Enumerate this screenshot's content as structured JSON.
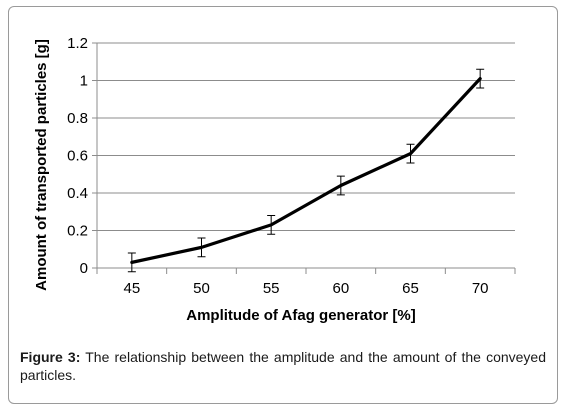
{
  "chart_data": {
    "type": "line",
    "x": [
      45,
      50,
      55,
      60,
      65,
      70
    ],
    "series": [
      {
        "values": [
          0.03,
          0.11,
          0.23,
          0.44,
          0.61,
          1.01
        ],
        "error": [
          0.05,
          0.05,
          0.05,
          0.05,
          0.05,
          0.05
        ],
        "color": "#000000"
      }
    ],
    "xlabel": "Amplitude of Afag generator [%]",
    "ylabel": "Amount of transported particles [g]",
    "xticks": [
      "45",
      "50",
      "55",
      "60",
      "65",
      "70"
    ],
    "yticks": [
      "0",
      "0.2",
      "0.4",
      "0.6",
      "0.8",
      "1",
      "1.2"
    ],
    "ylim": [
      0,
      1.2
    ],
    "grid": true
  },
  "caption": {
    "prefix": "Figure 3:",
    "text": " The relationship between the amplitude and the amount of the conveyed particles."
  }
}
